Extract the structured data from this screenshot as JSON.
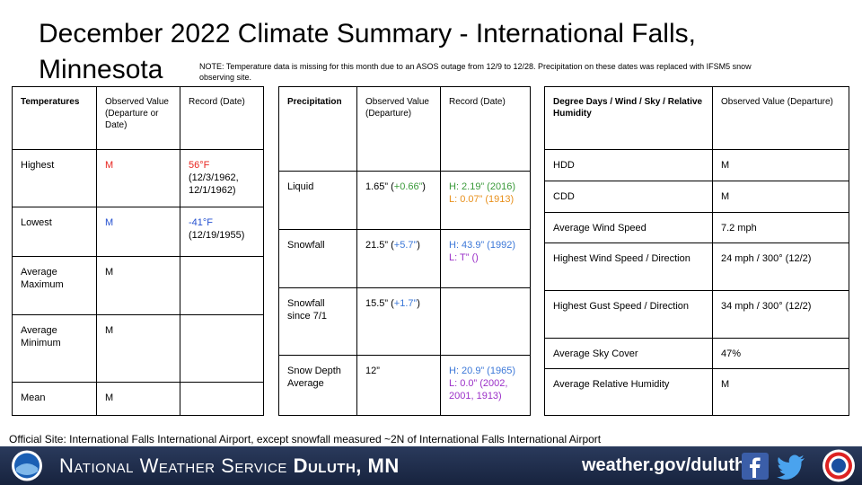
{
  "title": "December 2022 Climate Summary - International Falls, Minnesota",
  "note": "NOTE: Temperature data is missing for this month due to an ASOS outage from 12/9 to 12/28. Precipitation on these dates was replaced with IFSM5 snow observing site.",
  "tables": [
    {
      "header": [
        "Temperatures",
        "Observed Value (Departure or Date)",
        "Record (Date)"
      ],
      "rows": [
        [
          [
            {
              "text": "Highest"
            }
          ],
          [
            {
              "text": "M",
              "color": "#e8251f"
            }
          ],
          [
            {
              "text": "56°F",
              "color": "#e8251f"
            },
            {
              "text": "(12/3/1962, 12/1/1962)"
            }
          ]
        ],
        [
          [
            {
              "text": "Lowest"
            }
          ],
          [
            {
              "text": "M",
              "color": "#2450d0"
            }
          ],
          [
            {
              "text": "-41°F",
              "color": "#2450d0"
            },
            {
              "text": "(12/19/1955)"
            }
          ]
        ],
        [
          [
            {
              "text": "Average Maximum"
            }
          ],
          [
            {
              "text": "M"
            }
          ],
          []
        ],
        [
          [
            {
              "text": "Average Minimum"
            }
          ],
          [
            {
              "text": "M"
            }
          ],
          []
        ],
        [
          [
            {
              "text": "Mean"
            }
          ],
          [
            {
              "text": "M"
            }
          ],
          []
        ]
      ]
    },
    {
      "header": [
        "Precipitation",
        "Observed Value (Departure)",
        "Record (Date)"
      ],
      "rows": [
        [
          [
            {
              "text": "Liquid"
            }
          ],
          [
            {
              "text": "1.65” ("
            },
            {
              "text": "+0.66”",
              "color": "#3a9a3a"
            },
            {
              "text": ")"
            }
          ],
          [
            {
              "text": "H: 2.19” (2016)",
              "color": "#3a9a3a"
            },
            {
              "text": "L: 0.07” (1913)",
              "color": "#e8901c"
            }
          ]
        ],
        [
          [
            {
              "text": "Snowfall"
            }
          ],
          [
            {
              "text": "21.5” ("
            },
            {
              "text": "+5.7”",
              "color": "#3c78d8"
            },
            {
              "text": ")"
            }
          ],
          [
            {
              "text": "H: 43.9” (1992)",
              "color": "#3c78d8"
            },
            {
              "text": "L: T” ()",
              "color": "#9b30c8"
            }
          ]
        ],
        [
          [
            {
              "text": "Snowfall since 7/1"
            }
          ],
          [
            {
              "text": "15.5” ("
            },
            {
              "text": "+1.7”",
              "color": "#3c78d8"
            },
            {
              "text": ")"
            }
          ],
          []
        ],
        [
          [
            {
              "text": "Snow Depth Average"
            }
          ],
          [
            {
              "text": "12”"
            }
          ],
          [
            {
              "text": "H: 20.9” (1965)",
              "color": "#3c78d8"
            },
            {
              "text": "L: 0.0” (2002, 2001, 1913)",
              "color": "#9b30c8"
            }
          ]
        ]
      ]
    },
    {
      "header": [
        "Degree Days / Wind / Sky / Relative Humidity",
        "Observed Value (Departure)"
      ],
      "rows": [
        [
          [
            {
              "text": "HDD"
            }
          ],
          [
            {
              "text": "M"
            }
          ]
        ],
        [
          [
            {
              "text": "CDD"
            }
          ],
          [
            {
              "text": "M"
            }
          ]
        ],
        [
          [
            {
              "text": "Average Wind Speed"
            }
          ],
          [
            {
              "text": "7.2 mph"
            }
          ]
        ],
        [
          [
            {
              "text": "Highest Wind Speed / Direction"
            }
          ],
          [
            {
              "text": "24 mph / 300° (12/2)"
            }
          ]
        ],
        [
          [
            {
              "text": "Highest Gust Speed / Direction"
            }
          ],
          [
            {
              "text": "34 mph / 300° (12/2)"
            }
          ]
        ],
        [
          [
            {
              "text": "Average Sky Cover"
            }
          ],
          [
            {
              "text": "47%"
            }
          ]
        ],
        [
          [
            {
              "text": "Average Relative Humidity"
            }
          ],
          [
            {
              "text": "M"
            }
          ]
        ]
      ]
    }
  ],
  "footer": "Official Site: International Falls International Airport, except snowfall measured ~2N of International Falls International Airport",
  "banner": {
    "organization": "National Weather Service",
    "office": "Duluth, MN",
    "url": "weather.gov/duluth"
  }
}
